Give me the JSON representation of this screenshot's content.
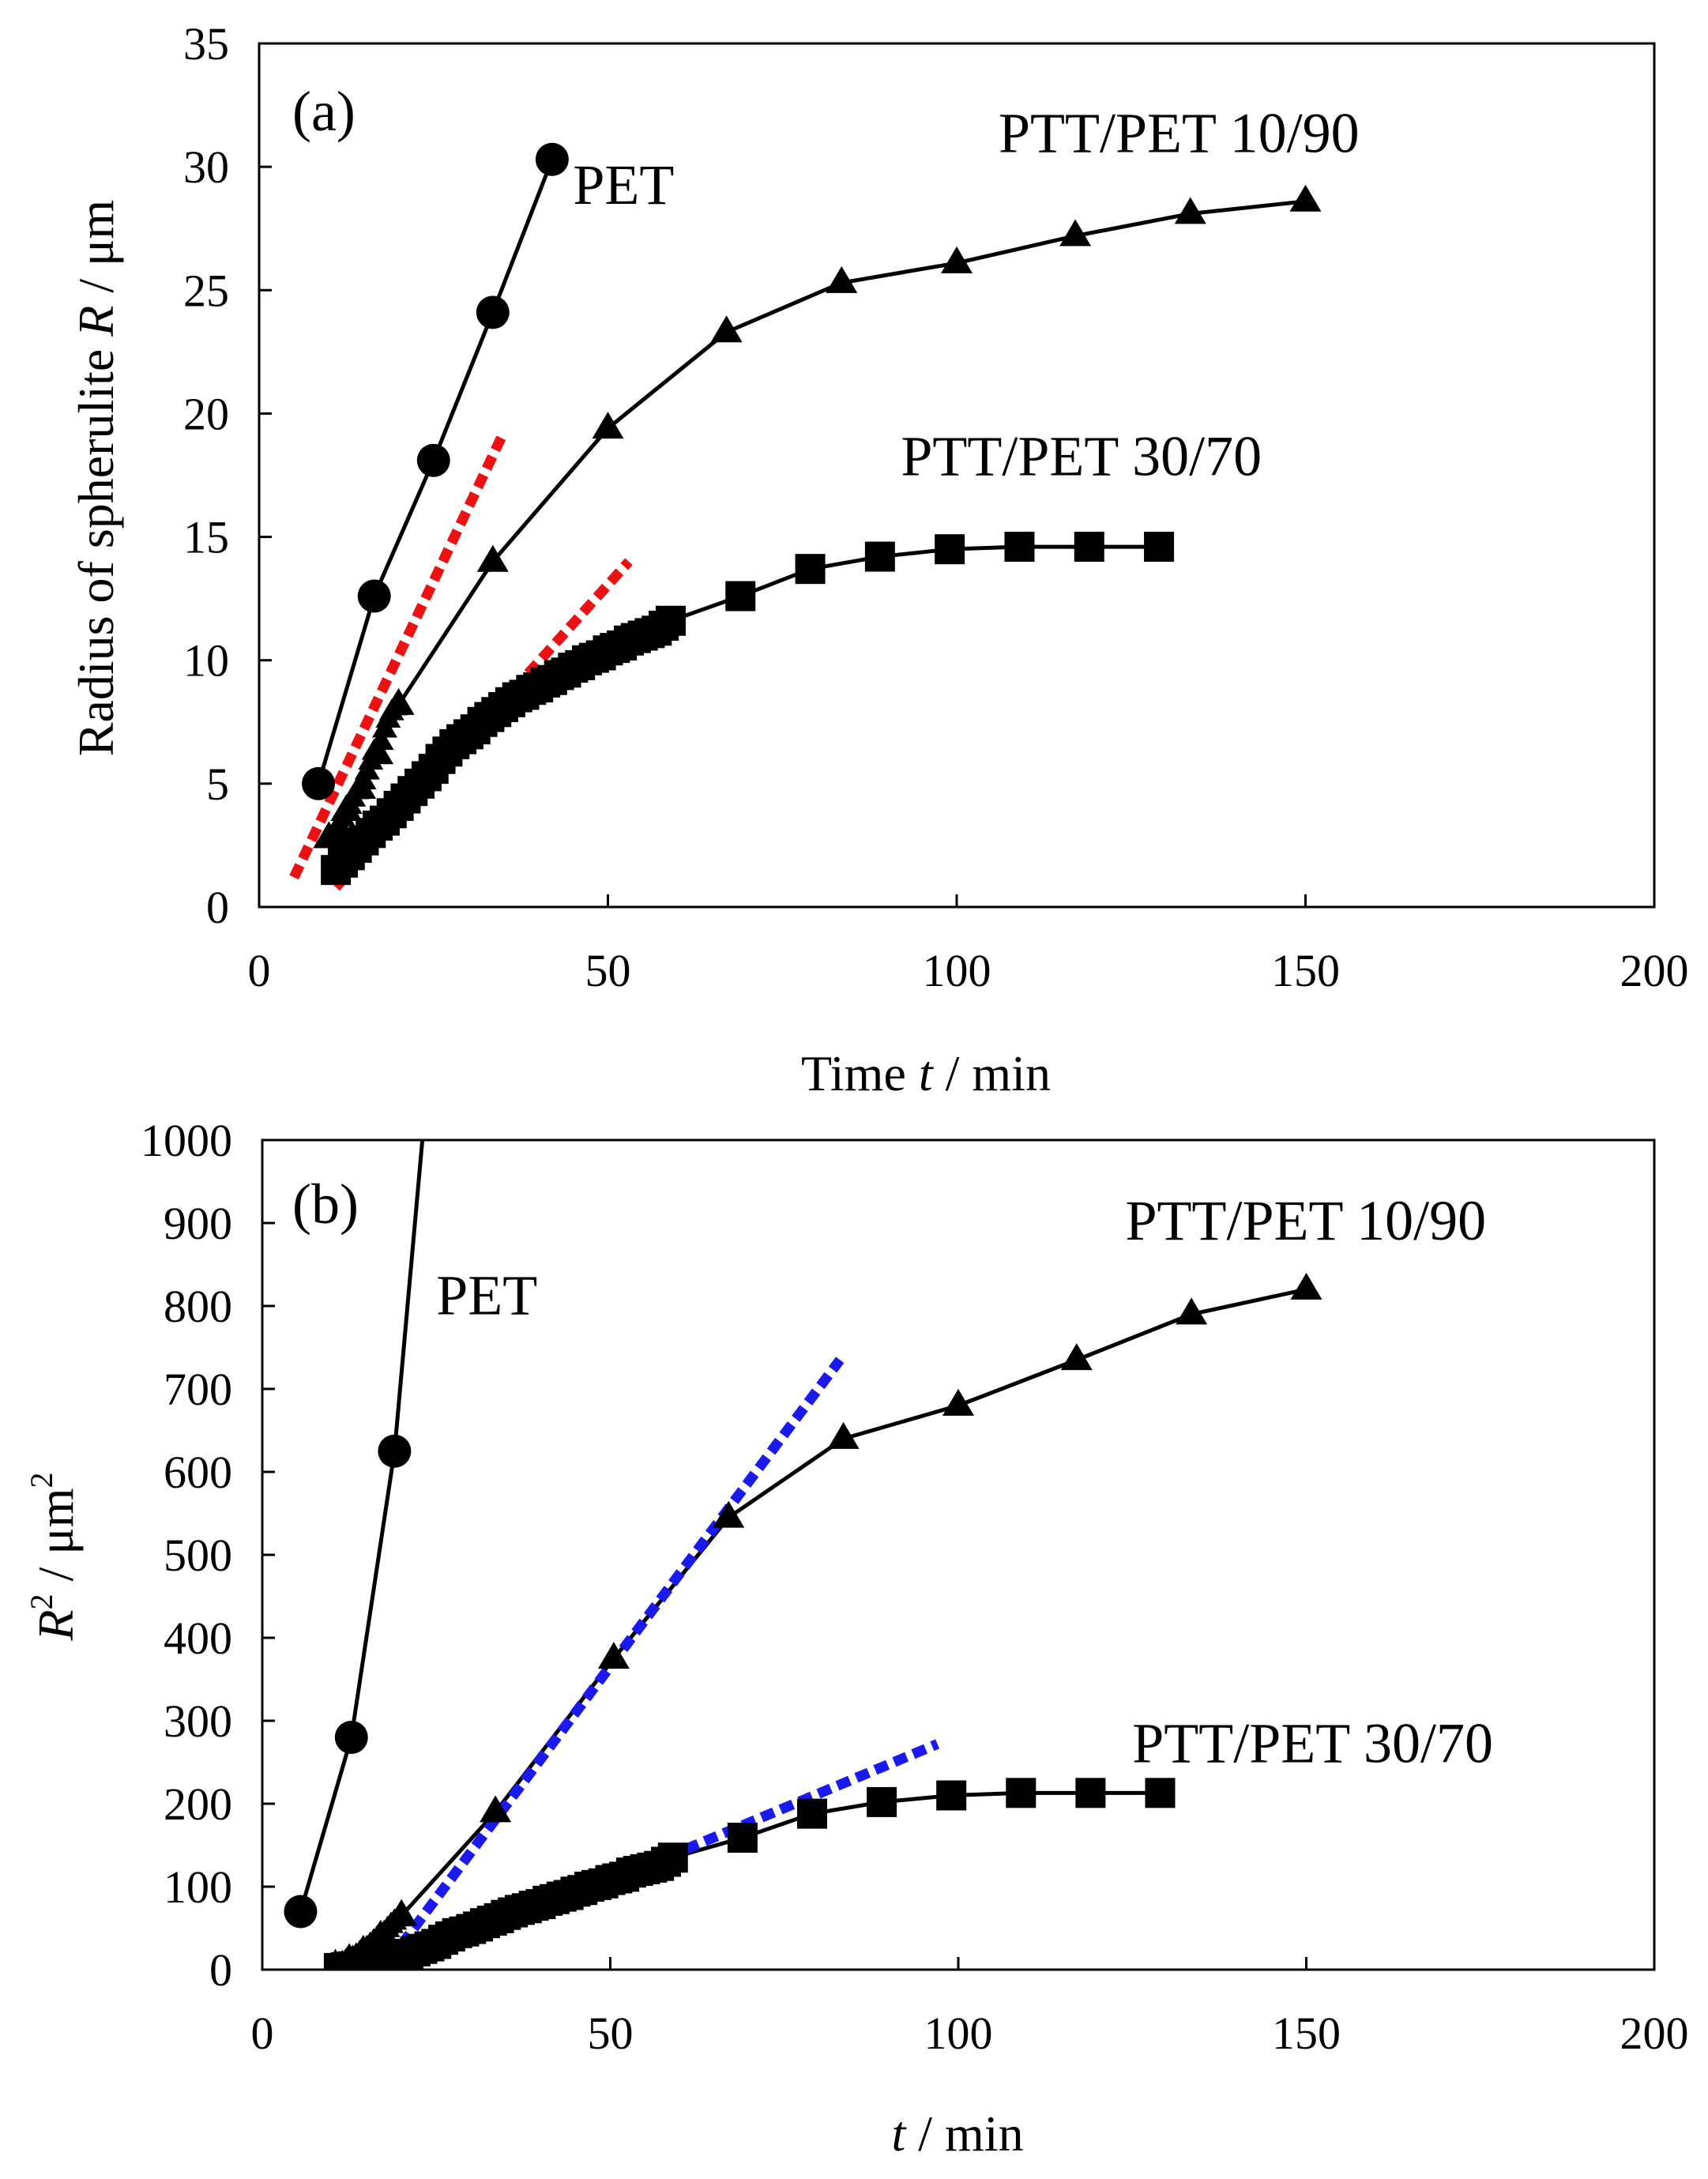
{
  "chart_data": [
    {
      "type": "line",
      "panel_label": "(a)",
      "xlabel_parts": [
        "Time ",
        "t",
        " / min"
      ],
      "ylabel_parts": [
        "Radius  of spherulite ",
        "R",
        " / μm"
      ],
      "xlim": [
        0,
        200
      ],
      "ylim": [
        0,
        35
      ],
      "xticks": [
        0,
        50,
        100,
        150,
        200
      ],
      "yticks": [
        0,
        5,
        10,
        15,
        20,
        25,
        30,
        35
      ],
      "xtick_labels": [
        "0",
        "50",
        "100",
        "150",
        "200"
      ],
      "ytick_labels": [
        "0",
        "5",
        "10",
        "15",
        "20",
        "25",
        "30",
        "35"
      ],
      "series": [
        {
          "name": "PET",
          "marker": "circle",
          "x": [
            8.5,
            16.5,
            25,
            33.5,
            42
          ],
          "y": [
            5.0,
            12.6,
            18.1,
            24.1,
            30.3
          ]
        },
        {
          "name": "PTT/PET 10/90",
          "marker": "triangle",
          "x": [
            10,
            12.5,
            14.5,
            17,
            20,
            33.5,
            50,
            67,
            83.5,
            100,
            117,
            133.5,
            150
          ],
          "y": [
            2.8,
            3.9,
            4.8,
            6.2,
            8.2,
            14.0,
            19.4,
            23.3,
            25.3,
            26.1,
            27.2,
            28.1,
            28.6
          ],
          "dense_x": [
            11,
            11.5,
            12,
            13,
            13.5,
            14,
            15,
            15.5,
            16,
            16.5,
            17.5,
            18,
            18.5,
            19,
            19.5
          ],
          "dense_y": [
            3.0,
            3.3,
            3.6,
            4.1,
            4.4,
            4.7,
            5.1,
            5.5,
            5.9,
            6.3,
            6.7,
            7.2,
            7.6,
            7.9,
            8.1
          ]
        },
        {
          "name": "PTT/PET 30/70",
          "marker": "square",
          "x": [
            11,
            12,
            13,
            14,
            15,
            16,
            17,
            18,
            19,
            20,
            21,
            22,
            23,
            24,
            25,
            26,
            27,
            28,
            29,
            30,
            31,
            32,
            33,
            34,
            35,
            36,
            37,
            38,
            39,
            40,
            41,
            42,
            43,
            44,
            45,
            46,
            47,
            48,
            49,
            50,
            51,
            52,
            53,
            54,
            55,
            56,
            57,
            58,
            59,
            69,
            79,
            89,
            99,
            109,
            119,
            129
          ],
          "y": [
            1.5,
            1.8,
            2.1,
            2.4,
            2.7,
            3.0,
            3.3,
            3.5,
            3.8,
            4.1,
            4.4,
            4.7,
            5.0,
            5.3,
            5.6,
            6.0,
            6.3,
            6.6,
            6.8,
            7.0,
            7.2,
            7.5,
            7.7,
            7.9,
            8.1,
            8.3,
            8.5,
            8.6,
            8.8,
            8.9,
            9.1,
            9.2,
            9.4,
            9.5,
            9.7,
            9.8,
            10.0,
            10.1,
            10.2,
            10.4,
            10.5,
            10.6,
            10.8,
            10.9,
            11.0,
            11.1,
            11.2,
            11.4,
            11.6,
            12.6,
            13.7,
            14.2,
            14.5,
            14.6,
            14.6,
            14.6
          ]
        }
      ],
      "fit_lines": [
        {
          "color": "#ee1111",
          "x": [
            5,
            35
          ],
          "y": [
            1.2,
            19.2
          ]
        },
        {
          "color": "#ee1111",
          "x": [
            11,
            53
          ],
          "y": [
            0.8,
            14.0
          ]
        }
      ],
      "annotations": [
        {
          "text": "PET",
          "x": 45,
          "y": 28.5
        },
        {
          "text": "PTT/PET 10/90",
          "x": 106,
          "y": 30.6
        },
        {
          "text": "PTT/PET 30/70",
          "x": 92,
          "y": 17.5
        }
      ]
    },
    {
      "type": "line",
      "panel_label": "(b)",
      "xlabel_parts": [
        "",
        "t",
        " / min"
      ],
      "ylabel_parts": [
        "",
        "R",
        "",
        "2",
        " / μm",
        "2"
      ],
      "xlim": [
        0,
        200
      ],
      "ylim": [
        0,
        1000
      ],
      "xticks": [
        0,
        50,
        100,
        150,
        200
      ],
      "yticks": [
        0,
        100,
        200,
        300,
        400,
        500,
        600,
        700,
        800,
        900,
        1000
      ],
      "xtick_labels": [
        "0",
        "50",
        "100",
        "150",
        "200"
      ],
      "ytick_labels": [
        "0",
        "100",
        "200",
        "300",
        "400",
        "500",
        "600",
        "700",
        "800",
        "900",
        "1000"
      ],
      "series": [
        {
          "name": "PET",
          "marker": "circle",
          "x": [
            5.5,
            12.8,
            19,
            23
          ],
          "y": [
            70,
            280,
            625,
            1000
          ],
          "marker_count": 3
        },
        {
          "name": "PTT/PET 10/90",
          "marker": "triangle",
          "x": [
            10.5,
            12.5,
            14.5,
            17,
            20,
            33.5,
            50.5,
            67,
            83.5,
            100,
            117,
            133.5,
            150
          ],
          "y": [
            5,
            12,
            22,
            40,
            65,
            190,
            375,
            545,
            640,
            680,
            735,
            790,
            820
          ],
          "dense_x": [
            11,
            11.5,
            12,
            13,
            13.5,
            14,
            15,
            15.5,
            16,
            16.5,
            17.5,
            18,
            18.5,
            19,
            19.5
          ],
          "dense_y": [
            6,
            8,
            10,
            14,
            17,
            20,
            26,
            30,
            34,
            38,
            44,
            49,
            54,
            58,
            62
          ]
        },
        {
          "name": "PTT/PET 30/70",
          "marker": "square",
          "x": [
            11,
            12,
            13,
            14,
            15,
            16,
            17,
            18,
            19,
            20,
            21,
            22,
            23,
            24,
            25,
            26,
            27,
            28,
            29,
            30,
            31,
            32,
            33,
            34,
            35,
            36,
            37,
            38,
            39,
            40,
            41,
            42,
            43,
            44,
            45,
            46,
            47,
            48,
            49,
            50,
            51,
            52,
            53,
            54,
            55,
            56,
            57,
            58,
            59,
            69,
            79,
            89,
            99,
            109,
            119,
            129
          ],
          "y": [
            2,
            3,
            4,
            6,
            7,
            9,
            11,
            12,
            14,
            17,
            19,
            22,
            25,
            28,
            31,
            36,
            40,
            44,
            46,
            49,
            52,
            56,
            59,
            62,
            66,
            69,
            72,
            74,
            77,
            79,
            83,
            85,
            88,
            90,
            94,
            96,
            100,
            102,
            104,
            108,
            110,
            112,
            117,
            119,
            121,
            123,
            125,
            130,
            135,
            159,
            188,
            202,
            210,
            213,
            213,
            213
          ]
        }
      ],
      "fit_lines": [
        {
          "color": "#1a1aee",
          "x": [
            20,
            83
          ],
          "y": [
            30,
            735
          ]
        },
        {
          "color": "#1a1aee",
          "x": [
            20,
            97
          ],
          "y": [
            2,
            272
          ]
        }
      ],
      "annotations": [
        {
          "text": "PET",
          "x": 25,
          "y": 790
        },
        {
          "text": "PTT/PET 10/90",
          "x": 124,
          "y": 880
        },
        {
          "text": "PTT/PET 30/70",
          "x": 125,
          "y": 250
        }
      ]
    }
  ]
}
